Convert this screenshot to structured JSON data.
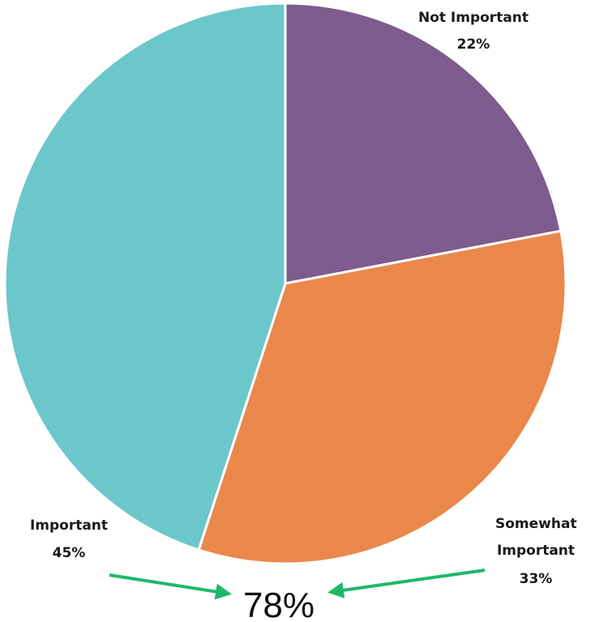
{
  "chart_data": {
    "type": "pie",
    "title": "",
    "start_angle_deg": 0,
    "direction": "clockwise",
    "slices": [
      {
        "label": "Not Important",
        "value": 22,
        "value_label": "22%",
        "color": "#7e5c8e"
      },
      {
        "label": "Somewhat Important",
        "value": 33,
        "value_label": "33%",
        "color": "#ea884c"
      },
      {
        "label": "Important",
        "value": 45,
        "value_label": "45%",
        "color": "#6cc7cb"
      }
    ],
    "slice_border_color": "#ffffff",
    "annotation": {
      "text": "78%",
      "arrow_color": "#1fb86a",
      "points_from": [
        "Important",
        "Somewhat Important"
      ]
    }
  }
}
